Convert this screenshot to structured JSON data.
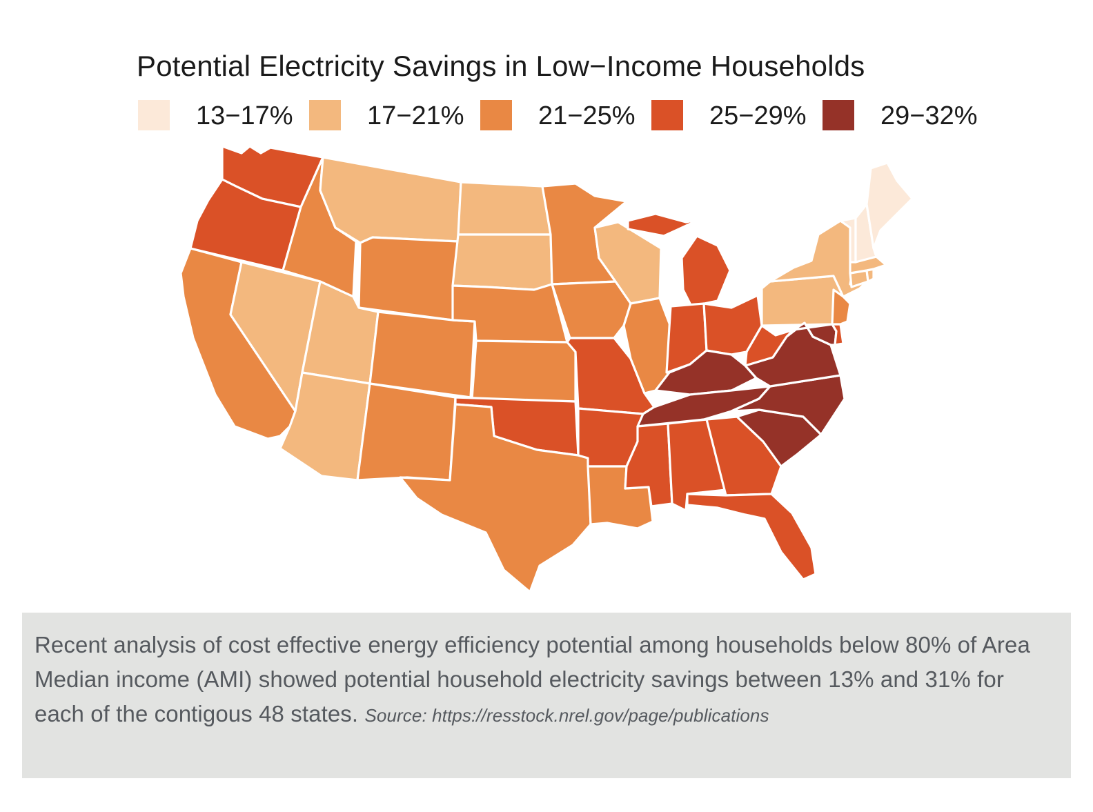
{
  "title": "Potential Electricity Savings in Low−Income Households",
  "legend": [
    {
      "label": "13−17%",
      "color": "#fce9d9"
    },
    {
      "label": "17−21%",
      "color": "#f3b87e"
    },
    {
      "label": "21−25%",
      "color": "#e98844"
    },
    {
      "label": "25−29%",
      "color": "#da5127"
    },
    {
      "label": "29−32%",
      "color": "#953228"
    }
  ],
  "map": {
    "region": "Contiguous United States",
    "bins": [
      "13−17%",
      "17−21%",
      "21−25%",
      "25−29%",
      "29−32%"
    ],
    "states": {
      "WA": 3,
      "OR": 3,
      "CA": 2,
      "NV": 1,
      "ID": 2,
      "MT": 1,
      "WY": 2,
      "UT": 1,
      "AZ": 1,
      "CO": 2,
      "NM": 2,
      "ND": 1,
      "SD": 1,
      "NE": 2,
      "KS": 2,
      "OK": 3,
      "TX": 2,
      "MN": 2,
      "IA": 2,
      "MO": 3,
      "AR": 3,
      "LA": 2,
      "WI": 1,
      "IL": 2,
      "MI": 3,
      "IN": 3,
      "OH": 3,
      "KY": 4,
      "TN": 4,
      "MS": 3,
      "AL": 3,
      "GA": 3,
      "FL": 3,
      "SC": 4,
      "NC": 4,
      "VA": 4,
      "WV": 3,
      "PA": 1,
      "NY": 1,
      "MD": 4,
      "DE": 3,
      "NJ": 2,
      "CT": 1,
      "RI": 1,
      "MA": 1,
      "VT": 0,
      "NH": 0,
      "ME": 0
    }
  },
  "caption": {
    "text": "Recent analysis of cost effective energy efficiency potential among households below 80% of Area Median income (AMI) showed potential household electricity savings between 13% and 31% for each of the contigous 48 states.",
    "source": "Source: https://resstock.nrel.gov/page/publications"
  }
}
